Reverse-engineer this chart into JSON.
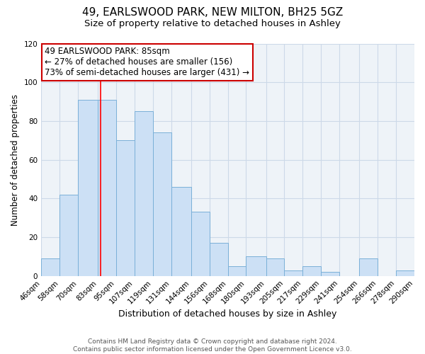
{
  "title": "49, EARLSWOOD PARK, NEW MILTON, BH25 5GZ",
  "subtitle": "Size of property relative to detached houses in Ashley",
  "xlabel": "Distribution of detached houses by size in Ashley",
  "ylabel": "Number of detached properties",
  "footer_line1": "Contains HM Land Registry data © Crown copyright and database right 2024.",
  "footer_line2": "Contains public sector information licensed under the Open Government Licence v3.0.",
  "bar_labels": [
    "46sqm",
    "58sqm",
    "70sqm",
    "83sqm",
    "95sqm",
    "107sqm",
    "119sqm",
    "131sqm",
    "144sqm",
    "156sqm",
    "168sqm",
    "180sqm",
    "193sqm",
    "205sqm",
    "217sqm",
    "229sqm",
    "241sqm",
    "254sqm",
    "266sqm",
    "278sqm",
    "290sqm"
  ],
  "bar_values": [
    9,
    42,
    91,
    91,
    70,
    85,
    74,
    46,
    33,
    17,
    5,
    10,
    9,
    3,
    5,
    2,
    0,
    9,
    0,
    3
  ],
  "bar_edges": [
    46,
    58,
    70,
    83,
    95,
    107,
    119,
    131,
    144,
    156,
    168,
    180,
    193,
    205,
    217,
    229,
    241,
    254,
    266,
    278,
    290
  ],
  "bar_color": "#cce0f5",
  "bar_edge_color": "#7ab0d8",
  "red_line_x": 85,
  "ylim": [
    0,
    120
  ],
  "yticks": [
    0,
    20,
    40,
    60,
    80,
    100,
    120
  ],
  "annotation_title": "49 EARLSWOOD PARK: 85sqm",
  "annotation_line1": "← 27% of detached houses are smaller (156)",
  "annotation_line2": "73% of semi-detached houses are larger (431) →",
  "annotation_box_color": "#ffffff",
  "annotation_box_edge_color": "#cc0000",
  "grid_color": "#ccd9e8",
  "background_color": "#eef3f8",
  "title_fontsize": 11,
  "subtitle_fontsize": 9.5,
  "xlabel_fontsize": 9,
  "ylabel_fontsize": 8.5,
  "tick_fontsize": 7.5,
  "annotation_fontsize": 8.5,
  "footer_fontsize": 6.5
}
